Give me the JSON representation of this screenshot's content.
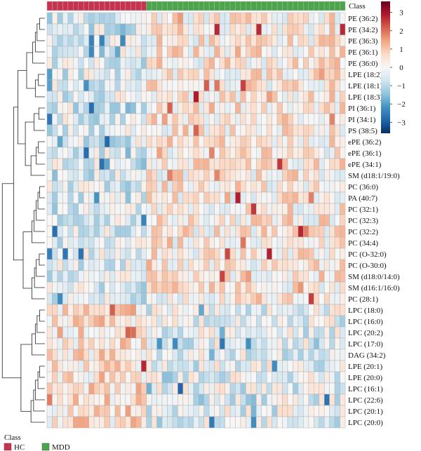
{
  "chart_data": {
    "type": "heatmap",
    "annotation_title": "Class",
    "classes": [
      {
        "name": "HC",
        "color": "#c8324f",
        "count": 19
      },
      {
        "name": "MDD",
        "color": "#4aa64a",
        "count": 38
      }
    ],
    "rows": [
      "PE (36:2)",
      "PE (34:2)",
      "PE (36:3)",
      "PE (36:1)",
      "PE (36:0)",
      "LPE (18:2)",
      "LPE (18:1)",
      "LPE (18:3)",
      "PI (36:1)",
      "PI (34:1)",
      "PS (38:5)",
      "ePE (36:2)",
      "ePE (36:1)",
      "ePE (34:1)",
      "SM (d18:1/19:0)",
      "PC (36:0)",
      "PA (40:7)",
      "PC (32:1)",
      "PC (32:3)",
      "PC (32:2)",
      "PC (34:4)",
      "PC (O-32:0)",
      "PC (O-30:0)",
      "SM (d18:0/14:0)",
      "SM (d16:1/16:0)",
      "PC (28:1)",
      "LPC (18:0)",
      "LPC (16:0)",
      "LPC (20:2)",
      "LPC (17:0)",
      "DAG (34:2)",
      "LPE (20:1)",
      "LPE (20:0)",
      "LPC (16:1)",
      "LPC (22:6)",
      "LPC (20:1)",
      "LPC (20:0)"
    ],
    "colorbar": {
      "ticks": [
        3,
        2,
        1,
        0,
        -1,
        -2,
        -3
      ],
      "range": [
        -3.6,
        3.6
      ],
      "colors": [
        "#053061",
        "#2166ac",
        "#4393c3",
        "#92c5de",
        "#d1e5f0",
        "#f7f7f7",
        "#fddbc7",
        "#f4a582",
        "#d6604d",
        "#b2182b",
        "#67001f"
      ]
    }
  }
}
